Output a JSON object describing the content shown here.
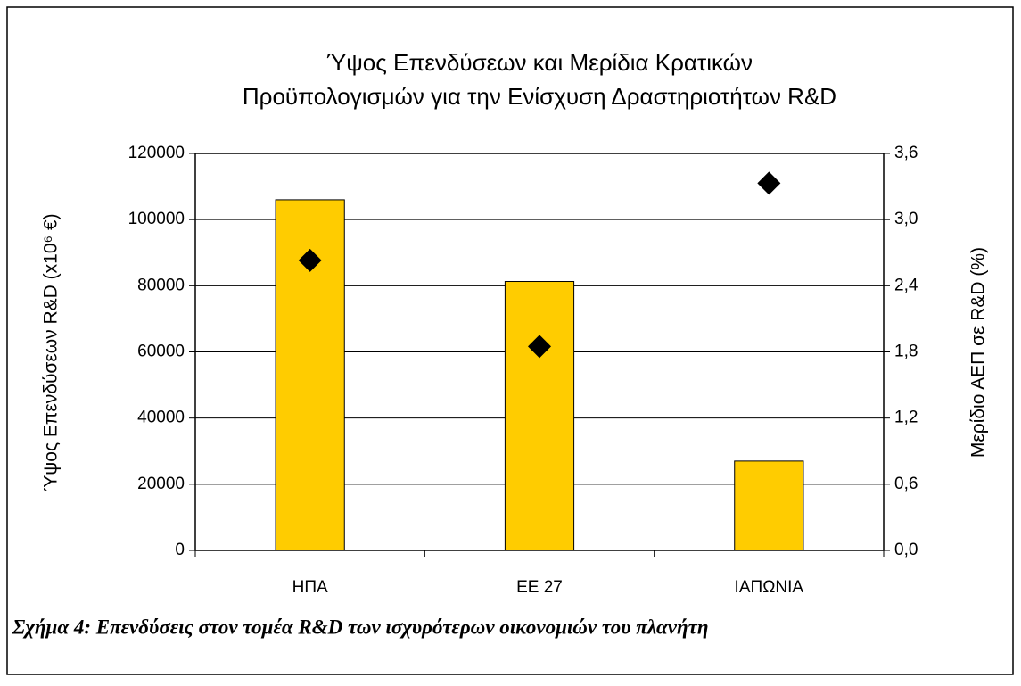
{
  "chart_data": {
    "type": "bar",
    "title": [
      "Ύψος Επενδύσεων και Μερίδια Κρατικών",
      "Προϋπολογισμών για την Ενίσχυση Δραστηριοτήτων R&D"
    ],
    "y_label": "Ύψος Επενδύσεων R&D  (x10⁶ €)",
    "y2_label": "Μερίδιο ΑΕΠ σε R&D (%)",
    "caption": "Σχήμα 4: Επενδύσεις στον τομέα R&D των ισχυρότερων οικονομιών του πλανήτη",
    "categories": [
      "ΗΠΑ",
      "ΕΕ 27",
      "ΙΑΠΩΝΙΑ"
    ],
    "series": [
      {
        "type": "bar",
        "color": "#ffcc00",
        "values": [
          106000,
          81300,
          27000
        ]
      },
      {
        "type": "scatter",
        "color": "#000000",
        "axis": "y2",
        "values": [
          2.63,
          1.85,
          3.33
        ]
      }
    ],
    "ylim": [
      0,
      120000
    ],
    "yticks": [
      0,
      20000,
      40000,
      60000,
      80000,
      100000,
      120000
    ],
    "y2lim": [
      0,
      3.6
    ],
    "y2ticks": [
      {
        "value": 0,
        "label": "0,0"
      },
      {
        "value": 0.6,
        "label": "0,6"
      },
      {
        "value": 1.2,
        "label": "1,2"
      },
      {
        "value": 1.8,
        "label": "1,8"
      },
      {
        "value": 2.4,
        "label": "2,4"
      },
      {
        "value": 3.0,
        "label": "3,0"
      },
      {
        "value": 3.6,
        "label": "3,6"
      }
    ],
    "grid": true
  }
}
